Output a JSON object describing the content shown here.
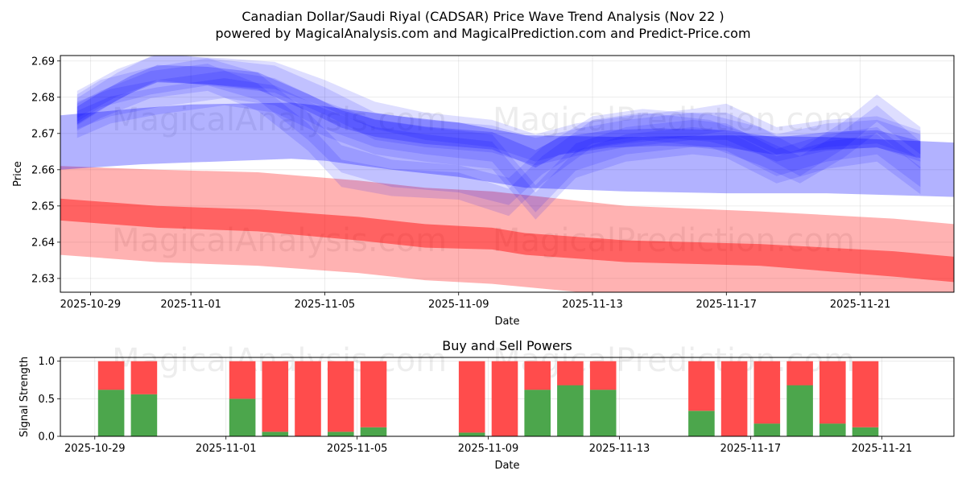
{
  "chart_data": [
    {
      "type": "area",
      "title": "Canadian Dollar/Saudi Riyal (CADSAR) Price Wave Trend Analysis (Nov 22 )",
      "subtitle": "powered by MagicalAnalysis.com and MagicalPrediction.com and Predict-Price.com",
      "xlabel": "Date",
      "ylabel": "Price",
      "xlim": [
        -0.9,
        25.8
      ],
      "ylim": [
        2.6262,
        2.6915
      ],
      "x_ticks": [
        {
          "d": 0,
          "label": "2025-10-29"
        },
        {
          "d": 3,
          "label": "2025-11-01"
        },
        {
          "d": 7,
          "label": "2025-11-05"
        },
        {
          "d": 11,
          "label": "2025-11-09"
        },
        {
          "d": 15,
          "label": "2025-11-13"
        },
        {
          "d": 19,
          "label": "2025-11-17"
        },
        {
          "d": 23,
          "label": "2025-11-21"
        }
      ],
      "y_ticks": [
        {
          "v": 2.63,
          "label": "2.63"
        },
        {
          "v": 2.64,
          "label": "2.64"
        },
        {
          "v": 2.65,
          "label": "2.65"
        },
        {
          "v": 2.66,
          "label": "2.66"
        },
        {
          "v": 2.67,
          "label": "2.67"
        },
        {
          "v": 2.68,
          "label": "2.68"
        },
        {
          "v": 2.69,
          "label": "2.69"
        }
      ],
      "grid": true,
      "watermarks": [
        "MagicalAnalysis.com",
        "MagicalPrediction.com",
        "MagicalAnalysis.com",
        "MagicalPrediction.com"
      ],
      "colors": {
        "blue_band": "#0000ff",
        "red_band": "#ff0000"
      },
      "red_bands": [
        {
          "name": "outer",
          "opacity": 0.3,
          "upper": [
            [
              -0.9,
              2.661
            ],
            [
              2,
              2.66
            ],
            [
              5,
              2.6593
            ],
            [
              8,
              2.657
            ],
            [
              10,
              2.655
            ],
            [
              12,
              2.654
            ],
            [
              16,
              2.65
            ],
            [
              20,
              2.6485
            ],
            [
              24,
              2.6465
            ],
            [
              25.8,
              2.645
            ]
          ],
          "lower": [
            [
              -0.9,
              2.6365
            ],
            [
              2,
              2.6345
            ],
            [
              5,
              2.6335
            ],
            [
              8,
              2.6315
            ],
            [
              10,
              2.6295
            ],
            [
              12,
              2.6285
            ],
            [
              16,
              2.625
            ],
            [
              20,
              2.624
            ],
            [
              24,
              2.622
            ],
            [
              25.8,
              2.621
            ]
          ]
        },
        {
          "name": "inner",
          "opacity": 0.45,
          "upper": [
            [
              -0.9,
              2.652
            ],
            [
              2,
              2.65
            ],
            [
              5,
              2.649
            ],
            [
              8,
              2.647
            ],
            [
              10,
              2.645
            ],
            [
              12,
              2.644
            ],
            [
              13,
              2.6425
            ],
            [
              16,
              2.6405
            ],
            [
              20,
              2.6395
            ],
            [
              24,
              2.6375
            ],
            [
              25.8,
              2.636
            ]
          ],
          "lower": [
            [
              -0.9,
              2.646
            ],
            [
              2,
              2.644
            ],
            [
              5,
              2.643
            ],
            [
              8,
              2.6405
            ],
            [
              10,
              2.6385
            ],
            [
              12,
              2.638
            ],
            [
              13,
              2.6365
            ],
            [
              16,
              2.6345
            ],
            [
              20,
              2.6335
            ],
            [
              24,
              2.6305
            ],
            [
              25.8,
              2.629
            ]
          ]
        }
      ],
      "blue_bands": [
        {
          "name": "trend-band",
          "opacity": 0.3,
          "upper": [
            [
              -0.9,
              2.675
            ],
            [
              1.5,
              2.677
            ],
            [
              3,
              2.678
            ],
            [
              6,
              2.6785
            ],
            [
              7,
              2.6775
            ],
            [
              9,
              2.675
            ],
            [
              11,
              2.673
            ],
            [
              13,
              2.6695
            ],
            [
              16,
              2.669
            ],
            [
              19,
              2.6695
            ],
            [
              22,
              2.669
            ],
            [
              25.8,
              2.6675
            ]
          ],
          "lower": [
            [
              -0.9,
              2.66
            ],
            [
              1.5,
              2.6615
            ],
            [
              3,
              2.662
            ],
            [
              6,
              2.663
            ],
            [
              7,
              2.6625
            ],
            [
              9,
              2.66
            ],
            [
              11,
              2.658
            ],
            [
              13,
              2.655
            ],
            [
              16,
              2.654
            ],
            [
              19,
              2.6535
            ],
            [
              22,
              2.6535
            ],
            [
              25.8,
              2.6525
            ]
          ]
        },
        {
          "name": "wave-1",
          "opacity": 0.13,
          "width": 0.0075,
          "line": [
            [
              -0.4,
              2.678
            ],
            [
              0.8,
              2.684
            ],
            [
              2,
              2.688
            ],
            [
              4,
              2.687
            ],
            [
              5.5,
              2.686
            ],
            [
              7,
              2.681
            ],
            [
              8.5,
              2.675
            ],
            [
              10,
              2.672
            ],
            [
              12,
              2.67
            ],
            [
              13.3,
              2.666
            ],
            [
              14.5,
              2.669
            ],
            [
              16,
              2.671
            ],
            [
              18,
              2.673
            ],
            [
              19,
              2.6745
            ],
            [
              20.5,
              2.668
            ],
            [
              22,
              2.67
            ],
            [
              23.5,
              2.671
            ],
            [
              24.8,
              2.667
            ]
          ]
        },
        {
          "name": "wave-2",
          "opacity": 0.13,
          "width": 0.0075,
          "line": [
            [
              -0.4,
              2.676
            ],
            [
              0.8,
              2.683
            ],
            [
              2,
              2.6885
            ],
            [
              4,
              2.6865
            ],
            [
              5.5,
              2.685
            ],
            [
              7,
              2.679
            ],
            [
              8.5,
              2.672
            ],
            [
              10,
              2.67
            ],
            [
              12,
              2.6685
            ],
            [
              13.3,
              2.665
            ],
            [
              14.5,
              2.6675
            ],
            [
              16,
              2.67
            ],
            [
              18,
              2.672
            ],
            [
              19,
              2.672
            ],
            [
              20.5,
              2.666
            ],
            [
              22,
              2.669
            ],
            [
              23.5,
              2.67
            ],
            [
              24.8,
              2.666
            ]
          ]
        },
        {
          "name": "wave-3",
          "opacity": 0.13,
          "width": 0.0075,
          "line": [
            [
              -0.4,
              2.677
            ],
            [
              0.3,
              2.681
            ],
            [
              1.8,
              2.6845
            ],
            [
              3.5,
              2.687
            ],
            [
              5,
              2.683
            ],
            [
              6.5,
              2.672
            ],
            [
              7.5,
              2.663
            ],
            [
              9,
              2.659
            ],
            [
              11,
              2.6575
            ],
            [
              12.5,
              2.654
            ],
            [
              13.5,
              2.6625
            ],
            [
              15,
              2.671
            ],
            [
              16.5,
              2.673
            ],
            [
              18.5,
              2.6715
            ],
            [
              20,
              2.668
            ],
            [
              21.2,
              2.662
            ],
            [
              22.5,
              2.6695
            ],
            [
              23.5,
              2.677
            ],
            [
              24.8,
              2.668
            ]
          ]
        },
        {
          "name": "wave-4",
          "opacity": 0.13,
          "width": 0.0075,
          "line": [
            [
              -0.4,
              2.6745
            ],
            [
              0.3,
              2.678
            ],
            [
              1.8,
              2.6835
            ],
            [
              3.5,
              2.6855
            ],
            [
              5,
              2.68
            ],
            [
              6.5,
              2.669
            ],
            [
              7.5,
              2.659
            ],
            [
              9,
              2.6565
            ],
            [
              11,
              2.6555
            ],
            [
              12.5,
              2.651
            ],
            [
              13.5,
              2.66
            ],
            [
              15,
              2.67
            ],
            [
              16.5,
              2.672
            ],
            [
              18.5,
              2.67
            ],
            [
              20,
              2.665
            ],
            [
              21.2,
              2.66
            ],
            [
              22.5,
              2.667
            ],
            [
              23.5,
              2.674
            ],
            [
              24.8,
              2.664
            ]
          ]
        },
        {
          "name": "wave-5",
          "opacity": 0.13,
          "width": 0.0075,
          "line": [
            [
              -0.4,
              2.675
            ],
            [
              0.6,
              2.6785
            ],
            [
              2,
              2.681
            ],
            [
              4,
              2.6835
            ],
            [
              5.5,
              2.6815
            ],
            [
              7,
              2.675
            ],
            [
              8.5,
              2.67
            ],
            [
              10,
              2.668
            ],
            [
              12,
              2.666
            ],
            [
              13.3,
              2.652
            ],
            [
              14.5,
              2.6635
            ],
            [
              16,
              2.668
            ],
            [
              18,
              2.67
            ],
            [
              19,
              2.669
            ],
            [
              20.5,
              2.662
            ],
            [
              22,
              2.666
            ],
            [
              23.5,
              2.668
            ],
            [
              24.8,
              2.659
            ]
          ]
        },
        {
          "name": "wave-6",
          "opacity": 0.13,
          "width": 0.0075,
          "line": [
            [
              -0.4,
              2.6725
            ],
            [
              0.6,
              2.6765
            ],
            [
              2,
              2.679
            ],
            [
              4,
              2.6815
            ],
            [
              5.5,
              2.6795
            ],
            [
              7,
              2.673
            ],
            [
              8.5,
              2.668
            ],
            [
              10,
              2.666
            ],
            [
              12,
              2.664
            ],
            [
              13.3,
              2.65
            ],
            [
              14.5,
              2.6615
            ],
            [
              16,
              2.666
            ],
            [
              18,
              2.668
            ],
            [
              19,
              2.667
            ],
            [
              20.5,
              2.66
            ],
            [
              22,
              2.664
            ],
            [
              23.5,
              2.666
            ],
            [
              24.8,
              2.657
            ]
          ]
        },
        {
          "name": "wave-core",
          "opacity": 0.22,
          "width": 0.0048,
          "line": [
            [
              -0.4,
              2.675
            ],
            [
              0.3,
              2.679
            ],
            [
              1.2,
              2.6835
            ],
            [
              2,
              2.6865
            ],
            [
              3.5,
              2.686
            ],
            [
              5,
              2.6845
            ],
            [
              6.5,
              2.6785
            ],
            [
              7.5,
              2.674
            ],
            [
              8.5,
              2.6715
            ],
            [
              10,
              2.6695
            ],
            [
              12,
              2.668
            ],
            [
              13.3,
              2.663
            ],
            [
              14,
              2.6665
            ],
            [
              15.5,
              2.6685
            ],
            [
              17,
              2.669
            ],
            [
              19,
              2.6685
            ],
            [
              20.5,
              2.6665
            ],
            [
              22,
              2.668
            ],
            [
              23.5,
              2.6685
            ],
            [
              24.8,
              2.6655
            ]
          ]
        }
      ]
    },
    {
      "type": "bar",
      "title": "Buy and Sell Powers",
      "xlabel": "Date",
      "ylabel": "Signal Strength",
      "ylim": [
        0,
        1.05
      ],
      "xlim": [
        -1.55,
        25.7
      ],
      "x_ticks": [
        {
          "d": -0.5,
          "label": "2025-10-29"
        },
        {
          "d": 3.5,
          "label": "2025-11-01"
        },
        {
          "d": 7.5,
          "label": "2025-11-05"
        },
        {
          "d": 11.5,
          "label": "2025-11-09"
        },
        {
          "d": 15.5,
          "label": "2025-11-13"
        },
        {
          "d": 19.5,
          "label": "2025-11-17"
        },
        {
          "d": 23.5,
          "label": "2025-11-21"
        }
      ],
      "y_ticks": [
        {
          "v": 0.0,
          "label": "0.0"
        },
        {
          "v": 0.5,
          "label": "0.5"
        },
        {
          "v": 1.0,
          "label": "1.0"
        }
      ],
      "grid": true,
      "colors": {
        "buy": "#4ca64c",
        "sell": "#ff4c4c"
      },
      "series": [
        {
          "name": "Buy",
          "values": [
            0.62,
            0.56,
            0.5,
            0.06,
            0.0,
            0.06,
            0.12,
            0.05,
            0.0,
            0.62,
            0.68,
            0.62,
            0.34,
            0.0,
            0.17,
            0.68,
            0.17,
            0.12
          ]
        },
        {
          "name": "Sell",
          "values": [
            0.38,
            0.44,
            0.5,
            0.94,
            1.0,
            0.94,
            0.88,
            0.95,
            1.0,
            0.38,
            0.32,
            0.38,
            0.66,
            1.0,
            0.83,
            0.32,
            0.83,
            0.88
          ]
        }
      ],
      "bar_x": [
        0,
        1,
        4,
        5,
        6,
        7,
        8,
        11,
        12,
        13,
        14,
        15,
        18,
        19,
        20,
        21,
        22,
        23
      ]
    }
  ]
}
